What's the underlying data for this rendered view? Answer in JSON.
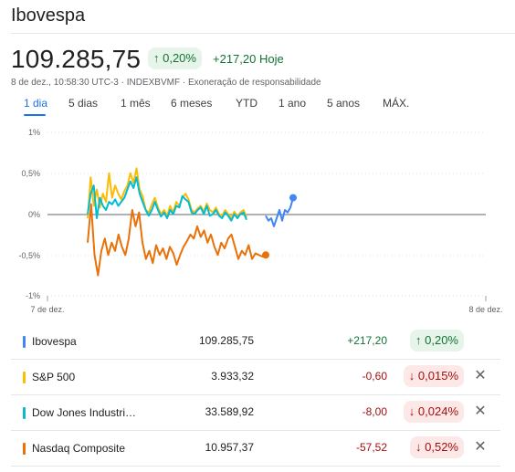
{
  "header": {
    "title": "Ibovespa",
    "price": "109.285,75",
    "pct_change": "↑ 0,20%",
    "abs_change": "+217,20 Hoje",
    "meta": "8 de dez., 10:58:30 UTC-3 · INDEXBVMF · Exoneração de responsabilidade"
  },
  "tabs": [
    "1 dia",
    "5 dias",
    "1 mês",
    "6 meses",
    "YTD",
    "1 ano",
    "5 anos",
    "MÁX."
  ],
  "active_tab": "1 dia",
  "chart_data": {
    "type": "line",
    "y_ticks": [
      "1%",
      "0,5%",
      "0%",
      "-0,5%",
      "-1%"
    ],
    "x_ticks": [
      "7 de dez.",
      "8 de dez."
    ],
    "ylim": [
      -1,
      1
    ],
    "y_unit": "%",
    "baseline": 0,
    "series": [
      {
        "color": "#fbbc04",
        "values": [
          -0.05,
          0.45,
          0.1,
          0.3,
          0.08,
          0.25,
          0.15,
          0.5,
          0.2,
          0.35,
          0.25,
          0.18,
          0.28,
          0.35,
          0.5,
          0.38,
          0.56,
          0.3,
          0.22,
          0.05,
          0.02,
          0.12,
          0.2,
          0.08,
          0.0,
          0.05,
          -0.02,
          0.1,
          0.02,
          0.15,
          0.1,
          0.2,
          0.25,
          0.18,
          0.05,
          0.02,
          0.07,
          0.1,
          0.03,
          0.13,
          0.05,
          0.02,
          0.08,
          0.0,
          -0.02,
          0.05,
          0.0,
          -0.05,
          0.03,
          -0.03,
          0.02,
          0.05,
          -0.04
        ]
      },
      {
        "color": "#00bcd4",
        "values": [
          0.0,
          0.25,
          0.35,
          -0.05,
          0.2,
          0.1,
          0.05,
          0.15,
          0.12,
          0.18,
          0.1,
          0.15,
          0.2,
          0.3,
          0.4,
          0.32,
          0.45,
          0.25,
          0.15,
          0.05,
          -0.02,
          0.05,
          0.15,
          0.05,
          -0.03,
          0.02,
          -0.05,
          0.05,
          0.0,
          0.1,
          0.08,
          0.22,
          0.18,
          0.15,
          0.02,
          0.0,
          0.05,
          0.08,
          0.0,
          0.1,
          -0.02,
          0.0,
          0.05,
          -0.02,
          -0.05,
          0.02,
          -0.02,
          -0.08,
          0.0,
          -0.05,
          0.0,
          0.02,
          -0.07
        ]
      },
      {
        "color": "#e8710a",
        "values": [
          -0.35,
          0.12,
          -0.5,
          -0.75,
          -0.45,
          -0.3,
          -0.5,
          -0.35,
          -0.45,
          -0.25,
          -0.4,
          -0.5,
          -0.3,
          0.05,
          -0.15,
          0.02,
          -0.35,
          -0.55,
          -0.45,
          -0.6,
          -0.38,
          -0.5,
          -0.42,
          -0.55,
          -0.4,
          -0.48,
          -0.62,
          -0.5,
          -0.4,
          -0.33,
          -0.25,
          -0.3,
          -0.15,
          -0.28,
          -0.2,
          -0.35,
          -0.25,
          -0.4,
          -0.5,
          -0.35,
          -0.42,
          -0.3,
          -0.25,
          -0.4,
          -0.55,
          -0.45,
          -0.5,
          -0.38,
          -0.55,
          -0.48,
          -0.5,
          -0.52,
          -0.5
        ]
      },
      {
        "color": "#4285f4",
        "values": [
          -0.02,
          -0.08,
          -0.05,
          -0.15,
          -0.05,
          0.05,
          -0.08,
          0.05,
          0.02,
          0.08,
          0.2
        ]
      }
    ]
  },
  "rows": [
    {
      "name": "Ibovespa",
      "value": "109.285,75",
      "change": "+217,20",
      "pct": "↑ 0,20%",
      "trend": "up",
      "color": "#4285f4",
      "closable": false
    },
    {
      "name": "S&P 500",
      "value": "3.933,32",
      "change": "-0,60",
      "pct": "↓ 0,015%",
      "trend": "down",
      "color": "#fbbc04",
      "closable": true
    },
    {
      "name": "Dow Jones Industri…",
      "value": "33.589,92",
      "change": "-8,00",
      "pct": "↓ 0,024%",
      "trend": "down",
      "color": "#12b5cb",
      "closable": true
    },
    {
      "name": "Nasdaq Composite",
      "value": "10.957,37",
      "change": "-57,52",
      "pct": "↓ 0,52%",
      "trend": "down",
      "color": "#e8710a",
      "closable": true
    }
  ],
  "icons": {
    "close": "close-icon"
  }
}
